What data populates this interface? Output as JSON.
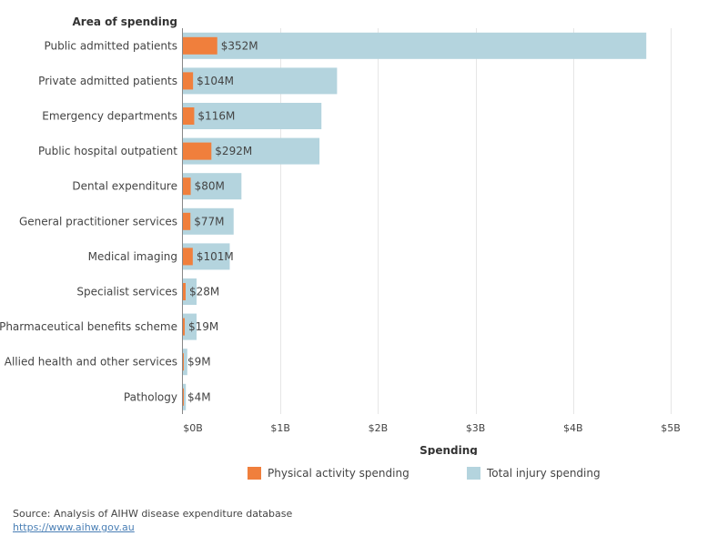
{
  "chart_data": {
    "type": "bar",
    "orientation": "horizontal",
    "category_axis_title": "Area of spending",
    "value_axis_title": "Spending",
    "categories": [
      "Public admitted patients",
      "Private admitted patients",
      "Emergency departments",
      "Public hospital outpatient",
      "Dental expenditure",
      "General practitioner services",
      "Medical imaging",
      "Specialist services",
      "Pharmaceutical benefits scheme",
      "Allied health and other services",
      "Pathology"
    ],
    "series": [
      {
        "name": "Physical activity spending",
        "color": "#f07f3c",
        "values": [
          352,
          104,
          116,
          292,
          80,
          77,
          101,
          28,
          19,
          9,
          4
        ],
        "unit": "M",
        "labels": [
          "$352M",
          "$104M",
          "$116M",
          "$292M",
          "$80M",
          "$77M",
          "$101M",
          "$28M",
          "$19M",
          "$9M",
          "$4M"
        ]
      },
      {
        "name": "Total injury spending",
        "color": "#b4d4de",
        "values": [
          4750,
          1580,
          1420,
          1400,
          600,
          520,
          480,
          140,
          140,
          45,
          30
        ],
        "unit": "M"
      }
    ],
    "xlim": [
      0,
      5000
    ],
    "ticks": [
      0,
      1000,
      2000,
      3000,
      4000,
      5000
    ],
    "tick_labels": [
      "$0B",
      "$1B",
      "$2B",
      "$3B",
      "$4B",
      "$5B"
    ],
    "grid": true,
    "legend_position": "bottom"
  },
  "footer": {
    "source": "Source: Analysis of AIHW disease expenditure database",
    "link": "https://www.aihw.gov.au"
  }
}
